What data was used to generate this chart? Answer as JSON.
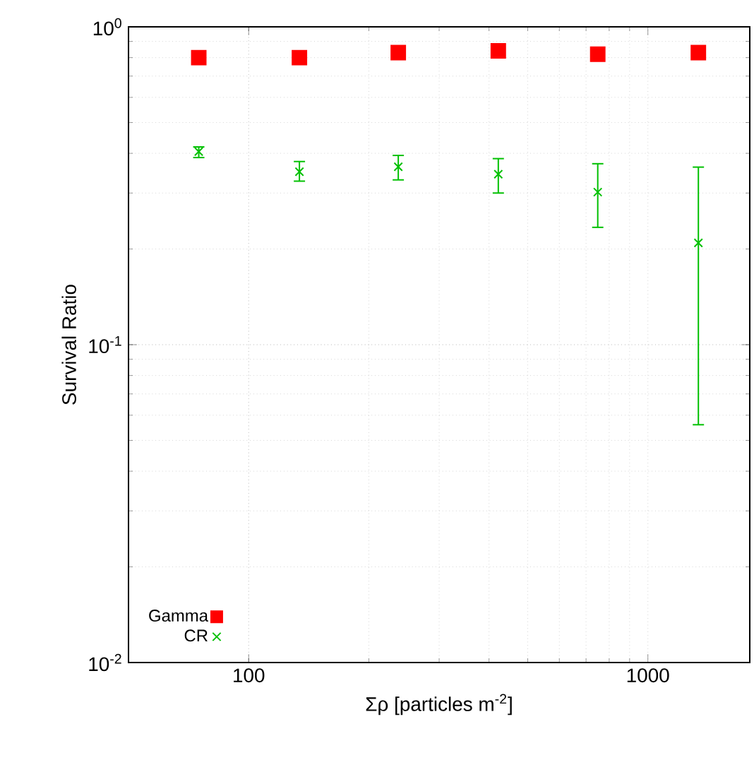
{
  "chart_data": {
    "type": "scatter",
    "xlabel": "Σρ [particles m$^{-2}$]",
    "ylabel": "Survival Ratio",
    "log": "xy",
    "grid": true,
    "legend": "bottom left",
    "xlim": [
      50,
      1800
    ],
    "xticks": [
      100,
      1000
    ],
    "ylim": [
      0.01,
      1
    ],
    "yticks": [
      {
        "value": 0.01,
        "label": "10$^{-2}$"
      },
      {
        "value": 0.1,
        "label": "10$^{-1}$"
      },
      {
        "value": 1,
        "label": "10$^{0}$"
      }
    ],
    "series": [
      {
        "name": "Gamma",
        "color": "#ff0000",
        "marker": "square",
        "x": [
          75,
          134,
          237,
          422,
          749,
          1338
        ],
        "values": [
          0.8,
          0.8,
          0.83,
          0.84,
          0.82,
          0.83
        ]
      },
      {
        "name": "CR",
        "color": "#00c000",
        "marker": "cross",
        "x": [
          75,
          134,
          237,
          422,
          749,
          1338
        ],
        "values": [
          0.405,
          0.35,
          0.363,
          0.344,
          0.302,
          0.209
        ],
        "errors": [
          [
            0.388,
            0.419
          ],
          [
            0.327,
            0.377
          ],
          [
            0.33,
            0.394
          ],
          [
            0.3,
            0.385
          ],
          [
            0.234,
            0.371
          ],
          [
            0.056,
            0.362
          ]
        ]
      }
    ]
  }
}
